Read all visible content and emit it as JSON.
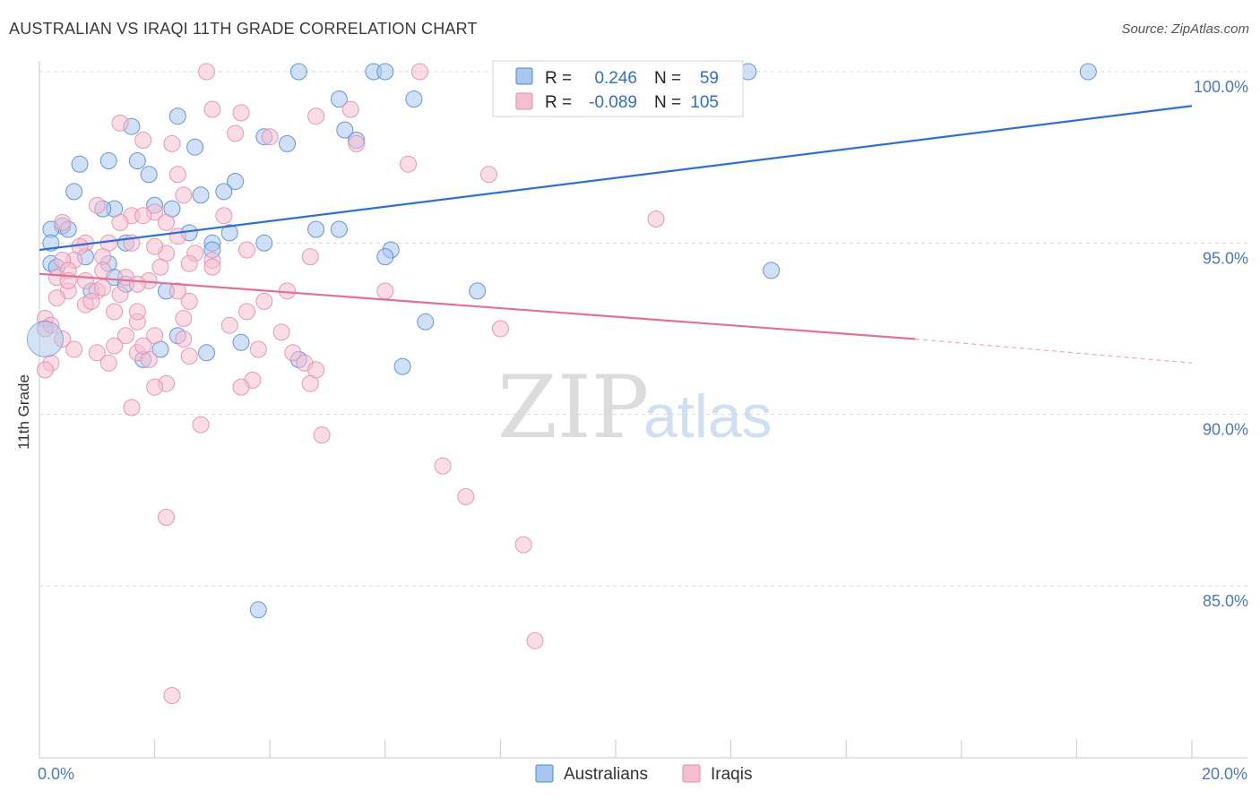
{
  "title": "AUSTRALIAN VS IRAQI 11TH GRADE CORRELATION CHART",
  "source": "Source: ZipAtlas.com",
  "watermark": {
    "zip": "ZIP",
    "atlas": "atlas"
  },
  "colors": {
    "blue_fill": "#a9c6ee",
    "blue_stroke": "#4f86cf",
    "blue_line": "#2e6fd1",
    "pink_fill": "#f6bfd1",
    "pink_stroke": "#e48aa9",
    "pink_line": "#e0709a",
    "label_blue": "#4a78c4",
    "grid": "#d9d9d9"
  },
  "legend": {
    "rows": [
      {
        "r_label": "R =",
        "r_value": "0.246",
        "n_label": "N =",
        "n_value": "59"
      },
      {
        "r_label": "R =",
        "r_value": "-0.089",
        "n_label": "N =",
        "n_value": "105"
      }
    ]
  },
  "bottom_legend": {
    "australians": "Australians",
    "iraqis": "Iraqis"
  },
  "chart_data": {
    "type": "scatter",
    "title": "AUSTRALIAN VS IRAQI 11TH GRADE CORRELATION CHART",
    "xlabel": "",
    "ylabel": "11th Grade",
    "xlim": [
      0,
      20
    ],
    "ylim": [
      80.0,
      100.4
    ],
    "x_tick_labels": [
      "0.0%",
      "20.0%"
    ],
    "y_ticks": [
      100,
      95,
      90,
      85
    ],
    "y_tick_labels": [
      "100.0%",
      "95.0%",
      "90.0%",
      "85.0%"
    ],
    "grid": true,
    "series": [
      {
        "name": "Australians",
        "r": 0.246,
        "n": 59,
        "trend": {
          "x0": 0,
          "y0": 94.8,
          "x1": 20,
          "y1": 99.0
        },
        "points": [
          [
            4.5,
            100
          ],
          [
            5.8,
            100
          ],
          [
            6.0,
            100
          ],
          [
            12.3,
            100
          ],
          [
            18.2,
            100
          ],
          [
            6.5,
            99.2
          ],
          [
            5.2,
            99.2
          ],
          [
            2.4,
            98.7
          ],
          [
            1.6,
            98.4
          ],
          [
            5.3,
            98.3
          ],
          [
            3.9,
            98.1
          ],
          [
            4.3,
            97.9
          ],
          [
            5.5,
            98.0
          ],
          [
            2.7,
            97.8
          ],
          [
            1.2,
            97.4
          ],
          [
            1.7,
            97.4
          ],
          [
            0.7,
            97.3
          ],
          [
            1.9,
            97.0
          ],
          [
            3.4,
            96.8
          ],
          [
            0.6,
            96.5
          ],
          [
            2.8,
            96.4
          ],
          [
            3.2,
            96.5
          ],
          [
            1.3,
            96.0
          ],
          [
            1.1,
            96.0
          ],
          [
            2.0,
            96.1
          ],
          [
            2.3,
            96.0
          ],
          [
            0.4,
            95.5
          ],
          [
            0.5,
            95.4
          ],
          [
            0.2,
            95.4
          ],
          [
            4.8,
            95.4
          ],
          [
            5.2,
            95.4
          ],
          [
            3.3,
            95.3
          ],
          [
            2.6,
            95.3
          ],
          [
            1.5,
            95.0
          ],
          [
            3.0,
            95.0
          ],
          [
            3.9,
            95.0
          ],
          [
            0.2,
            95.0
          ],
          [
            3.0,
            94.8
          ],
          [
            6.1,
            94.8
          ],
          [
            6.0,
            94.6
          ],
          [
            0.8,
            94.6
          ],
          [
            0.2,
            94.4
          ],
          [
            1.2,
            94.4
          ],
          [
            12.7,
            94.2
          ],
          [
            0.3,
            94.3
          ],
          [
            1.3,
            94.0
          ],
          [
            1.5,
            93.8
          ],
          [
            2.2,
            93.6
          ],
          [
            0.9,
            93.6
          ],
          [
            7.6,
            93.6
          ],
          [
            6.7,
            92.7
          ],
          [
            2.4,
            92.3
          ],
          [
            3.5,
            92.1
          ],
          [
            2.1,
            91.9
          ],
          [
            2.9,
            91.8
          ],
          [
            1.8,
            91.6
          ],
          [
            4.5,
            91.6
          ],
          [
            6.3,
            91.4
          ],
          [
            3.8,
            84.3
          ]
        ]
      },
      {
        "name": "Iraqis",
        "r": -0.089,
        "n": 105,
        "trend": {
          "x0": 0,
          "y0": 94.1,
          "x1": 15.2,
          "y1": 92.2,
          "dash_to": {
            "x": 20,
            "y": 91.5
          }
        },
        "points": [
          [
            2.9,
            100
          ],
          [
            6.6,
            100
          ],
          [
            3.0,
            98.9
          ],
          [
            3.5,
            98.8
          ],
          [
            4.8,
            98.7
          ],
          [
            5.4,
            98.9
          ],
          [
            1.4,
            98.5
          ],
          [
            1.8,
            98.0
          ],
          [
            2.3,
            97.9
          ],
          [
            3.4,
            98.2
          ],
          [
            4.0,
            98.1
          ],
          [
            5.5,
            97.9
          ],
          [
            6.4,
            97.3
          ],
          [
            7.8,
            97.0
          ],
          [
            2.4,
            97.0
          ],
          [
            1.0,
            96.1
          ],
          [
            2.5,
            96.4
          ],
          [
            2.0,
            95.9
          ],
          [
            1.6,
            95.8
          ],
          [
            1.8,
            95.8
          ],
          [
            1.4,
            95.6
          ],
          [
            3.2,
            95.8
          ],
          [
            2.2,
            95.6
          ],
          [
            0.4,
            95.6
          ],
          [
            10.7,
            95.7
          ],
          [
            2.4,
            95.2
          ],
          [
            0.8,
            95.0
          ],
          [
            1.6,
            95.0
          ],
          [
            0.7,
            94.9
          ],
          [
            1.2,
            95.0
          ],
          [
            3.6,
            94.8
          ],
          [
            2.2,
            94.7
          ],
          [
            2.7,
            94.7
          ],
          [
            1.1,
            94.6
          ],
          [
            0.6,
            94.5
          ],
          [
            0.4,
            94.5
          ],
          [
            3.0,
            94.5
          ],
          [
            4.7,
            94.6
          ],
          [
            0.5,
            94.2
          ],
          [
            1.1,
            94.2
          ],
          [
            2.1,
            94.3
          ],
          [
            2.6,
            94.4
          ],
          [
            1.5,
            94.0
          ],
          [
            0.3,
            94.0
          ],
          [
            0.8,
            93.9
          ],
          [
            1.9,
            93.9
          ],
          [
            1.7,
            93.8
          ],
          [
            1.0,
            93.6
          ],
          [
            4.3,
            93.6
          ],
          [
            6.0,
            93.6
          ],
          [
            0.5,
            93.6
          ],
          [
            1.4,
            93.5
          ],
          [
            0.3,
            93.4
          ],
          [
            2.6,
            93.3
          ],
          [
            3.9,
            93.3
          ],
          [
            0.8,
            93.2
          ],
          [
            1.3,
            93.0
          ],
          [
            3.6,
            93.0
          ],
          [
            0.1,
            92.8
          ],
          [
            2.5,
            92.8
          ],
          [
            1.7,
            92.7
          ],
          [
            0.2,
            92.6
          ],
          [
            0.1,
            92.5
          ],
          [
            8.0,
            92.5
          ],
          [
            1.5,
            92.3
          ],
          [
            0.4,
            92.2
          ],
          [
            2.0,
            92.3
          ],
          [
            1.3,
            92.0
          ],
          [
            0.6,
            91.9
          ],
          [
            1.7,
            91.8
          ],
          [
            2.5,
            92.2
          ],
          [
            4.4,
            91.8
          ],
          [
            3.8,
            91.9
          ],
          [
            1.0,
            91.8
          ],
          [
            1.9,
            91.6
          ],
          [
            0.2,
            91.5
          ],
          [
            1.2,
            91.5
          ],
          [
            4.6,
            91.5
          ],
          [
            0.1,
            91.3
          ],
          [
            4.8,
            91.3
          ],
          [
            3.7,
            91.0
          ],
          [
            2.2,
            90.9
          ],
          [
            2.0,
            90.8
          ],
          [
            3.5,
            90.8
          ],
          [
            4.7,
            90.9
          ],
          [
            1.6,
            90.2
          ],
          [
            2.8,
            89.7
          ],
          [
            4.9,
            89.4
          ],
          [
            7.0,
            88.5
          ],
          [
            7.4,
            87.6
          ],
          [
            2.2,
            87.0
          ],
          [
            8.4,
            86.2
          ],
          [
            8.6,
            83.4
          ],
          [
            2.3,
            81.8
          ],
          [
            1.7,
            93.0
          ],
          [
            3.0,
            94.3
          ],
          [
            2.4,
            93.6
          ],
          [
            0.9,
            93.3
          ],
          [
            1.8,
            92.0
          ],
          [
            2.6,
            91.7
          ],
          [
            3.3,
            92.6
          ],
          [
            4.2,
            92.4
          ],
          [
            2.0,
            94.9
          ],
          [
            0.5,
            93.9
          ],
          [
            1.1,
            93.7
          ]
        ]
      }
    ]
  }
}
